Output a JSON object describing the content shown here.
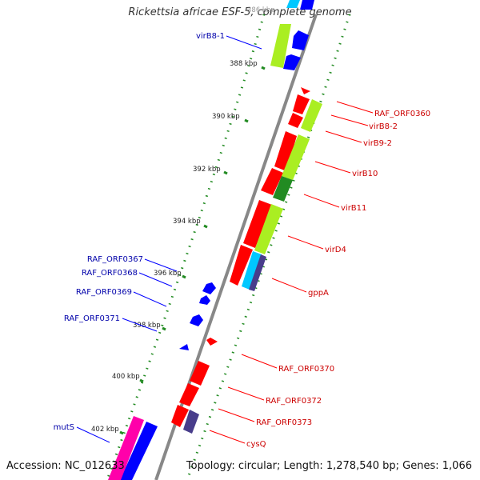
{
  "title": "Rickettsia africae ESF-5, complete genome",
  "footer": {
    "accession": "Accession: NC_012633",
    "topology": "Topology: circular; Length: 1,278,540 bp; Genes: 1,066"
  },
  "colors": {
    "backbone": "#888888",
    "cds": "#ff0000",
    "cds_reverse": "#0000ff",
    "trna": "#ff00aa",
    "gc_skew": "#aaee22",
    "cog_cyan": "#00c8ff",
    "cog_purple": "#483d8b",
    "cog_dark_green": "#228b22",
    "tick": "#228b22",
    "label_forward": "#cc0000",
    "label_reverse": "#0000aa"
  },
  "ticks": [
    "388 kbp",
    "390 kbp",
    "392 kbp",
    "394 kbp",
    "396 kbp",
    "398 kbp",
    "400 kbp",
    "402 kbp"
  ],
  "partial_tick": "386 kbp",
  "genes_forward": [
    {
      "name": "RAF_ORF0360",
      "kbp": 390.1
    },
    {
      "name": "virB8-2",
      "kbp": 390.35
    },
    {
      "name": "virB9-2",
      "kbp": 390.8
    },
    {
      "name": "virB10",
      "kbp": 391.9
    },
    {
      "name": "virB11",
      "kbp": 393.0
    },
    {
      "name": "virD4",
      "kbp": 394.7
    },
    {
      "name": "gppA",
      "kbp": 396.1
    },
    {
      "name": "RAF_ORF0370",
      "kbp": 399.7
    },
    {
      "name": "RAF_ORF0372",
      "kbp": 400.4
    },
    {
      "name": "RAF_ORF0373",
      "kbp": 401.2
    },
    {
      "name": "cysQ",
      "kbp": 401.85
    }
  ],
  "genes_reverse": [
    {
      "name": "virB8-1",
      "kbp": 387.0
    },
    {
      "name": "RAF_ORF0367",
      "kbp": 396.9
    },
    {
      "name": "RAF_ORF0368",
      "kbp": 397.2
    },
    {
      "name": "RAF_ORF0369",
      "kbp": 397.6
    },
    {
      "name": "RAF_ORF0371",
      "kbp": 398.2
    },
    {
      "name": "mutS",
      "kbp": 402.4
    }
  ]
}
